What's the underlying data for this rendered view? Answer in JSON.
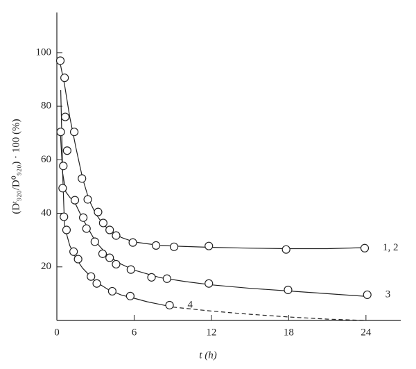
{
  "chart_data": {
    "type": "scatter",
    "x_label": "t (h)",
    "y_label": "(Dᵗ₉₂₀/D⁰₉₂₀) · 100 (%)",
    "xlim": [
      0,
      26.7
    ],
    "ylim": [
      0,
      115
    ],
    "xticks": [
      0,
      6,
      12,
      18,
      24
    ],
    "yticks": [
      20,
      40,
      60,
      80,
      100
    ],
    "series": [
      {
        "name": "1, 2",
        "x": [
          0.27,
          0.6,
          0.65,
          0.8,
          1.35,
          1.95,
          2.4,
          3.2,
          3.6,
          4.1,
          4.6,
          5.9,
          7.7,
          9.1,
          11.8,
          17.8,
          23.9
        ],
        "values": [
          97,
          90.6,
          76,
          63.4,
          70.4,
          53,
          45.2,
          40.5,
          36.4,
          33.8,
          31.7,
          29.1,
          28,
          27.5,
          27.8,
          26.5,
          27
        ]
      },
      {
        "name": "3",
        "x": [
          0.3,
          0.5,
          0.45,
          1.4,
          2.05,
          2.3,
          2.95,
          3.55,
          4.1,
          4.6,
          5.75,
          7.35,
          8.55,
          11.8,
          17.95,
          24.1
        ],
        "values": [
          70.4,
          57.7,
          49.4,
          44.9,
          38.4,
          34.3,
          29.4,
          24.9,
          23.4,
          21,
          19,
          16.1,
          15.6,
          13.8,
          11.4,
          9.6
        ]
      },
      {
        "name": "4",
        "x": [
          0.55,
          0.75,
          1.3,
          1.65,
          2.65,
          3.1,
          4.3,
          5.7,
          8.75
        ],
        "values": [
          38.7,
          33.8,
          25.7,
          22.9,
          16.4,
          13.8,
          10.9,
          9.1,
          5.7
        ]
      }
    ],
    "lines": [
      {
        "dashed": false,
        "x": [
          0,
          0.3,
          0.6,
          1,
          1.5,
          2,
          2.5,
          3,
          3.5,
          4,
          5,
          6,
          8,
          10,
          12,
          15,
          18,
          21,
          24
        ],
        "values": [
          98,
          95,
          88,
          76,
          64,
          53,
          45,
          40,
          36.5,
          34,
          31,
          29.3,
          28,
          27.6,
          27.3,
          27,
          26.8,
          26.8,
          27.2
        ]
      },
      {
        "dashed": false,
        "x": [
          0.25,
          0.45,
          0.7,
          1,
          1.4,
          2,
          3,
          4,
          5,
          6,
          8,
          10,
          12,
          15,
          18,
          21,
          24
        ],
        "values": [
          72,
          55,
          48,
          46,
          44,
          38,
          29.5,
          24,
          21,
          18.8,
          16,
          14.5,
          13.3,
          12,
          11,
          10,
          9
        ]
      },
      {
        "dashed": false,
        "x": [
          0.3,
          0.45,
          0.6,
          1,
          1.5,
          2,
          3,
          4,
          5,
          6,
          7,
          8,
          9
        ],
        "values": [
          86,
          55,
          35,
          28,
          23,
          19.5,
          14.5,
          11.5,
          9.5,
          8.3,
          7,
          6,
          5
        ]
      },
      {
        "dashed": true,
        "x": [
          9,
          12,
          15,
          18,
          21,
          24
        ],
        "values": [
          5,
          3.5,
          2.3,
          1.3,
          0.5,
          0
        ]
      }
    ]
  }
}
